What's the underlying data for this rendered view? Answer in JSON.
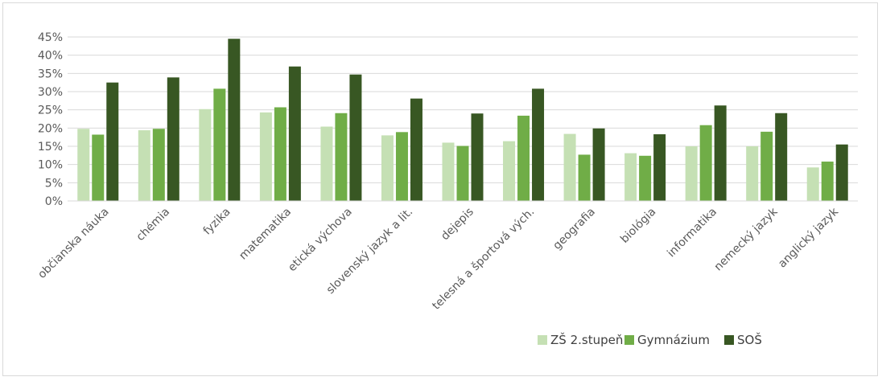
{
  "chart_data": {
    "type": "bar",
    "title": "",
    "xlabel": "",
    "ylabel": "",
    "ylim": [
      0,
      45
    ],
    "y_ticks": [
      "0%",
      "5%",
      "10%",
      "15%",
      "20%",
      "25%",
      "30%",
      "35%",
      "40%",
      "45%"
    ],
    "grid": "horizontal",
    "legend_position": "bottom-right",
    "categories": [
      "občianska náuka",
      "chémia",
      "fyzika",
      "matematika",
      "etická výchova",
      "slovenský jazyk a lit.",
      "dejepis",
      "telesná a športová vých.",
      "geografia",
      "biológia",
      "informatika",
      "nemecký jazyk",
      "anglický jazyk"
    ],
    "series": [
      {
        "name": "ZŠ 2.stupeň",
        "color": "#c5e0b4",
        "values": [
          19.8,
          19.4,
          25.2,
          24.3,
          20.4,
          18.0,
          16.0,
          16.4,
          18.4,
          13.1,
          15.0,
          15.0,
          9.2
        ]
      },
      {
        "name": "Gymnázium",
        "color": "#70ad47",
        "values": [
          18.2,
          19.8,
          30.8,
          25.7,
          24.1,
          18.9,
          15.1,
          23.4,
          12.7,
          12.4,
          20.8,
          19.0,
          10.8
        ]
      },
      {
        "name": "SOŠ",
        "color": "#385723",
        "values": [
          32.5,
          33.9,
          44.5,
          36.9,
          34.7,
          28.1,
          24.0,
          30.8,
          19.9,
          18.3,
          26.2,
          24.1,
          15.5
        ]
      }
    ]
  }
}
